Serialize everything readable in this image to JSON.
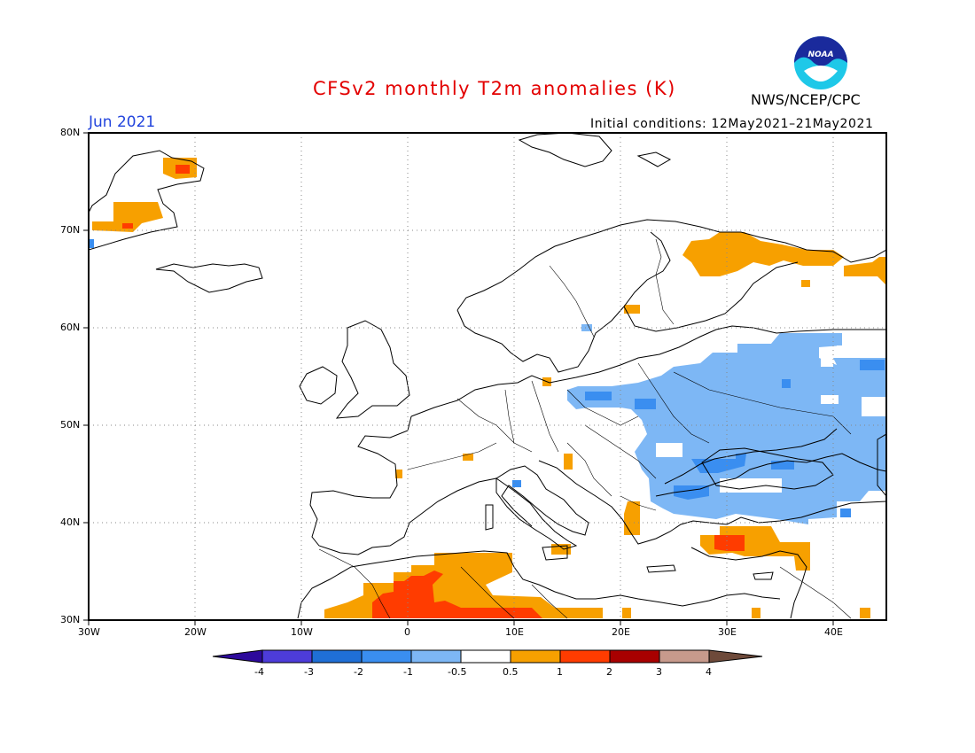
{
  "header": {
    "title": "CFSv2 monthly T2m anomalies (K)",
    "agency": "NWS/NCEP/CPC",
    "period": "Jun 2021",
    "initial_conditions": "Initial conditions: 12May2021–21May2021",
    "logo_text": "NOAA"
  },
  "map": {
    "lon_range": [
      -30,
      45
    ],
    "lat_range": [
      30,
      80
    ],
    "lat_labels": [
      "30N",
      "40N",
      "50N",
      "60N",
      "70N",
      "80N"
    ],
    "lon_labels": [
      "30W",
      "20W",
      "10W",
      "0",
      "10E",
      "20E",
      "30E",
      "40E"
    ],
    "grid": "dotted",
    "units": "K"
  },
  "colorbar": {
    "labels": [
      "-4",
      "-3",
      "-2",
      "-1",
      "-0.5",
      "0.5",
      "1",
      "2",
      "3",
      "4"
    ],
    "colors": [
      "#2d0a9b",
      "#4d3cd9",
      "#1f6fd6",
      "#3a8ef0",
      "#7db7f5",
      "#ffffff",
      "#f7a000",
      "#ff3c00",
      "#a80000",
      "#c79a8c",
      "#6e4a3a"
    ]
  },
  "colors": {
    "title": "#e30000",
    "period": "#2244dd",
    "warm_0_5_1": "#f7a000",
    "warm_1_2": "#ff3c00",
    "cool_m1_m0_5": "#7db7f5",
    "cool_m2_m1": "#3a8ef0"
  }
}
